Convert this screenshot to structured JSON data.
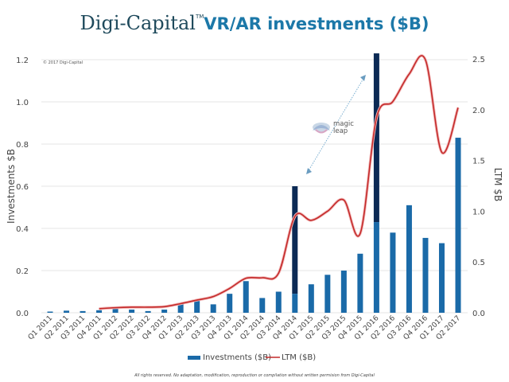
{
  "title": {
    "brand": "Digi-Capital",
    "tm": "TM",
    "rest": "VR/AR investments ($B)"
  },
  "copyright": "© 2017 Digi-Capital",
  "footer": "All rights reserved. No adaptation, modification, reproduction or compilation without written permision from Digi-Capital",
  "annotation": {
    "label_line1": "magic",
    "label_line2": "leap",
    "icon": "magic-leap-logo-icon"
  },
  "colors": {
    "bar": "#1a6aa8",
    "bar_highlight": "#0c2a55",
    "line": "#c42a2a",
    "grid": "#e6e6e6",
    "annotation_arrow": "#6aa6c8"
  },
  "chart_data": {
    "type": "bar",
    "title": "Digi-Capital VR/AR investments ($B)",
    "xlabel": "",
    "ylabel": "Investments $B",
    "y2label": "LTM $B",
    "ylim": [
      0,
      1.2
    ],
    "y2lim": [
      0,
      2.5
    ],
    "yticks": [
      "0.0",
      "0.2",
      "0.4",
      "0.6",
      "0.8",
      "1.0",
      "1.2"
    ],
    "y2ticks": [
      "0.0",
      "0.5",
      "1.0",
      "1.5",
      "2.0",
      "2.5"
    ],
    "grid": true,
    "legend_position": "bottom-center",
    "categories": [
      "Q1 2011",
      "Q2 2011",
      "Q3 2011",
      "Q4 2011",
      "Q1 2012",
      "Q2 2012",
      "Q3 2012",
      "Q4 2012",
      "Q1 2013",
      "Q2 2013",
      "Q3 2013",
      "Q4 2013",
      "Q1 2014",
      "Q2 2014",
      "Q3 2014",
      "Q4 2014",
      "Q1 2015",
      "Q2 2015",
      "Q3 2015",
      "Q4 2015",
      "Q1 2016",
      "Q2 2016",
      "Q3 2016",
      "Q4 2016",
      "Q1 2017",
      "Q2 2017"
    ],
    "series": [
      {
        "name": "Investments ($B)",
        "type": "bar",
        "axis": "left",
        "values": [
          0.005,
          0.01,
          0.008,
          0.012,
          0.02,
          0.015,
          0.008,
          0.015,
          0.04,
          0.06,
          0.04,
          0.09,
          0.15,
          0.07,
          0.1,
          0.6,
          0.135,
          0.18,
          0.2,
          0.28,
          1.23,
          0.38,
          0.51,
          0.355,
          0.33,
          0.83
        ],
        "highlight_base": [
          null,
          null,
          null,
          null,
          null,
          null,
          null,
          null,
          null,
          null,
          null,
          null,
          null,
          null,
          null,
          0.09,
          null,
          null,
          null,
          null,
          0.43,
          null,
          null,
          null,
          null,
          null
        ]
      },
      {
        "name": "LTM ($B)",
        "type": "line",
        "axis": "right",
        "values": [
          null,
          null,
          null,
          0.04,
          0.05,
          0.055,
          0.055,
          0.06,
          0.09,
          0.125,
          0.16,
          0.24,
          0.34,
          0.345,
          0.39,
          0.95,
          0.91,
          1.0,
          1.11,
          0.78,
          1.92,
          2.08,
          2.35,
          2.49,
          1.58,
          2.02
        ]
      }
    ],
    "annotations": [
      {
        "text": "magic leap",
        "between": [
          "Q4 2014",
          "Q1 2016"
        ]
      }
    ]
  }
}
